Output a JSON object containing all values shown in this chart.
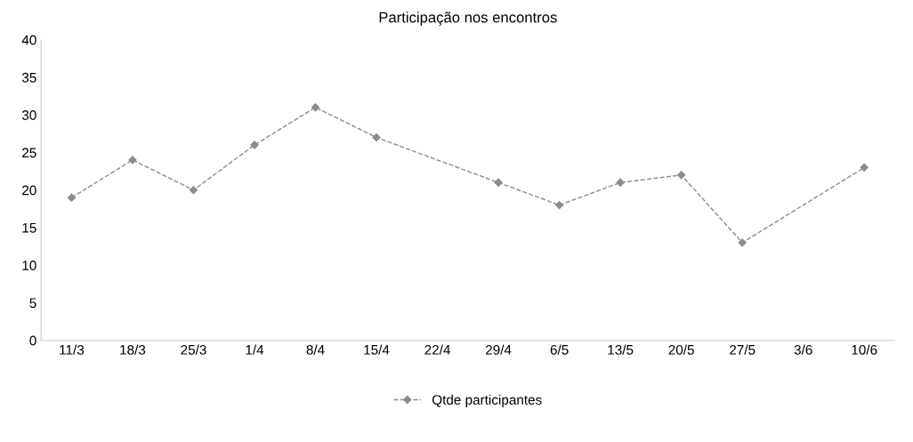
{
  "chart_data": {
    "type": "line",
    "title": "Participação nos encontros",
    "categories": [
      "11/3",
      "18/3",
      "25/3",
      "1/4",
      "8/4",
      "15/4",
      "22/4",
      "29/4",
      "6/5",
      "13/5",
      "20/5",
      "27/5",
      "3/6",
      "10/6"
    ],
    "series": [
      {
        "name": "Qtde participantes",
        "color": "#8c8c8c",
        "values": [
          19,
          24,
          20,
          26,
          31,
          27,
          null,
          21,
          18,
          21,
          22,
          13,
          null,
          23
        ]
      }
    ],
    "ylim": [
      0,
      40
    ],
    "yticks": [
      0,
      5,
      10,
      15,
      20,
      25,
      30,
      35,
      40
    ],
    "marker": "diamond",
    "line_style": "dashed",
    "legend": "bottom",
    "grid": false
  }
}
